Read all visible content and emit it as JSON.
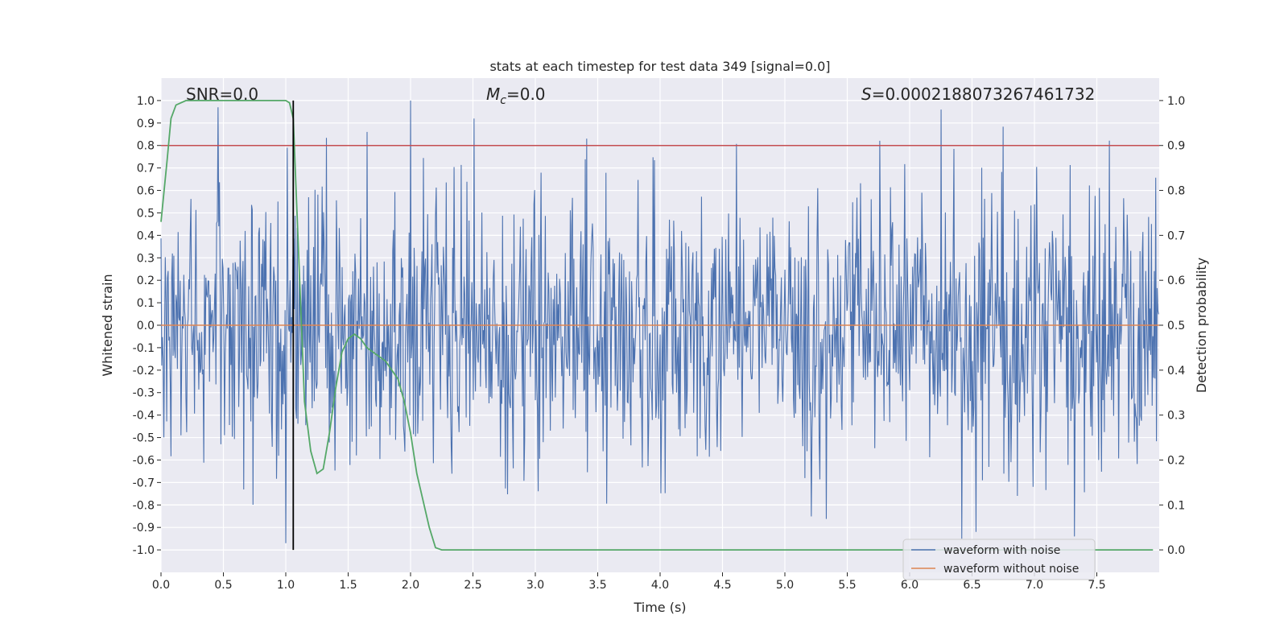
{
  "chart_data": {
    "type": "line",
    "title": "stats at each timestep for test data 349 [signal=0.0]",
    "xlabel": "Time (s)",
    "ylabel": "Whitened strain",
    "ylabel_right": "Detection probability",
    "xlim": [
      0.0,
      8.0
    ],
    "ylim": [
      -1.1,
      1.1
    ],
    "ylim_right": [
      -0.05,
      1.05
    ],
    "x_ticks": [
      "0.0",
      "0.5",
      "1.0",
      "1.5",
      "2.0",
      "2.5",
      "3.0",
      "3.5",
      "4.0",
      "4.5",
      "5.0",
      "5.5",
      "6.0",
      "6.5",
      "7.0",
      "7.5"
    ],
    "x_tick_values": [
      0.0,
      0.5,
      1.0,
      1.5,
      2.0,
      2.5,
      3.0,
      3.5,
      4.0,
      4.5,
      5.0,
      5.5,
      6.0,
      6.5,
      7.0,
      7.5
    ],
    "y_ticks": [
      "1.0",
      "0.9",
      "0.8",
      "0.7",
      "0.6",
      "0.5",
      "0.4",
      "0.3",
      "0.2",
      "0.1",
      "0.0",
      "-0.1",
      "-0.2",
      "-0.3",
      "-0.4",
      "-0.5",
      "-0.6",
      "-0.7",
      "-0.8",
      "-0.9",
      "-1.0"
    ],
    "y_tick_values": [
      1.0,
      0.9,
      0.8,
      0.7,
      0.6,
      0.5,
      0.4,
      0.3,
      0.2,
      0.1,
      0.0,
      -0.1,
      -0.2,
      -0.3,
      -0.4,
      -0.5,
      -0.6,
      -0.7,
      -0.8,
      -0.9,
      -1.0
    ],
    "y_right_ticks": [
      "1.0",
      "0.9",
      "0.8",
      "0.7",
      "0.6",
      "0.5",
      "0.4",
      "0.3",
      "0.2",
      "0.1",
      "0.0"
    ],
    "y_right_tick_values": [
      1.0,
      0.9,
      0.8,
      0.7,
      0.6,
      0.5,
      0.4,
      0.3,
      0.2,
      0.1,
      0.0
    ],
    "annotations": {
      "snr": "SNR=0.0",
      "mc_symbol": "M",
      "mc_sub": "c",
      "mc_value": "=0.0",
      "s_symbol": "S",
      "s_value": "=0.0002188073267461732"
    },
    "series": [
      {
        "name": "waveform with noise",
        "color": "#4c72b0",
        "axis": "left",
        "description": "whitened noise, dense oscillation approximately within [-0.97, 1.0]",
        "seed": 349,
        "samples": 1400,
        "peaks": [
          {
            "x": 0.46,
            "y": 0.97
          },
          {
            "x": 1.01,
            "y": 0.79
          },
          {
            "x": 2.0,
            "y": 1.0
          },
          {
            "x": 6.25,
            "y": 0.96
          },
          {
            "x": 1.0,
            "y": -0.97
          },
          {
            "x": 6.42,
            "y": -0.95
          },
          {
            "x": 7.32,
            "y": -0.94
          }
        ]
      },
      {
        "name": "waveform without noise",
        "color": "#dd8452",
        "axis": "left",
        "x": [
          0.0,
          8.0
        ],
        "y": [
          0.0,
          0.0
        ]
      },
      {
        "name": "detection probability",
        "color": "#55a868",
        "axis": "right",
        "x": [
          0.0,
          0.05,
          0.08,
          0.12,
          0.2,
          0.3,
          0.5,
          0.7,
          0.9,
          1.0,
          1.03,
          1.06,
          1.1,
          1.15,
          1.2,
          1.25,
          1.3,
          1.35,
          1.4,
          1.45,
          1.5,
          1.55,
          1.6,
          1.65,
          1.7,
          1.75,
          1.8,
          1.85,
          1.9,
          1.95,
          2.0,
          2.05,
          2.1,
          2.15,
          2.2,
          2.25,
          2.5,
          3.0,
          4.0,
          5.0,
          6.0,
          7.0,
          7.95
        ],
        "y": [
          0.73,
          0.87,
          0.96,
          0.99,
          1.0,
          1.0,
          1.0,
          1.0,
          1.0,
          1.0,
          0.995,
          0.96,
          0.68,
          0.33,
          0.22,
          0.17,
          0.18,
          0.26,
          0.36,
          0.44,
          0.47,
          0.48,
          0.47,
          0.45,
          0.44,
          0.43,
          0.42,
          0.4,
          0.38,
          0.33,
          0.26,
          0.17,
          0.11,
          0.05,
          0.005,
          0.0,
          0.0,
          0.0,
          0.0,
          0.0,
          0.0,
          0.0,
          0.0
        ]
      }
    ],
    "hlines": [
      {
        "name": "threshold",
        "axis": "right",
        "value": 0.9,
        "color": "#c44e52"
      }
    ],
    "vlines": [
      {
        "name": "marker",
        "x": 1.06,
        "ymin": -1.0,
        "ymax": 1.0,
        "color": "#000000"
      }
    ],
    "legend": {
      "placement": "bottom-right",
      "items": [
        {
          "label": "waveform with noise",
          "color": "#4c72b0"
        },
        {
          "label": "waveform without noise",
          "color": "#dd8452"
        }
      ]
    },
    "grid": true,
    "background": "#eaeaf2"
  }
}
